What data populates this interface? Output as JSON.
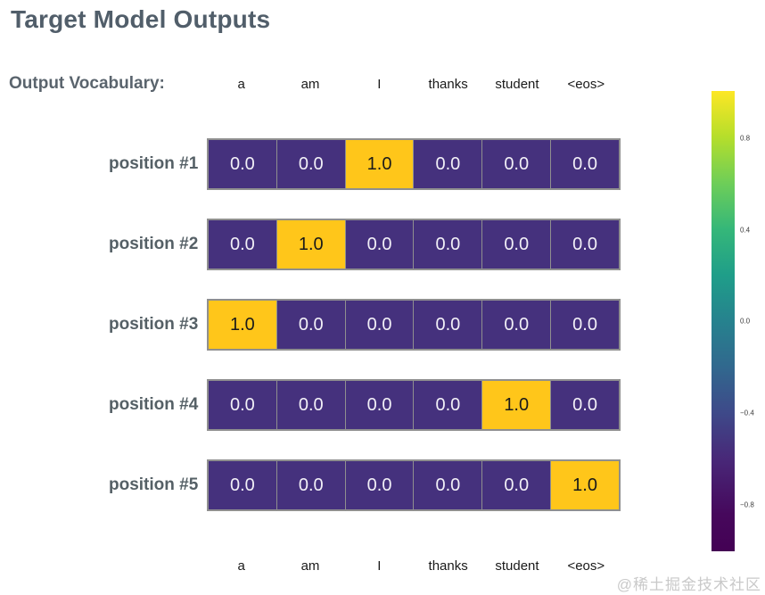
{
  "title": "Target Model Outputs",
  "vocab_label": "Output Vocabulary:",
  "watermark": "@稀土掘金技术社区",
  "chart_data": {
    "type": "heatmap",
    "title": "Target Model Outputs",
    "columns": [
      "a",
      "am",
      "I",
      "thanks",
      "student",
      "<eos>"
    ],
    "rows": [
      {
        "label": "position #1",
        "values": [
          0.0,
          0.0,
          1.0,
          0.0,
          0.0,
          0.0
        ]
      },
      {
        "label": "position #2",
        "values": [
          0.0,
          1.0,
          0.0,
          0.0,
          0.0,
          0.0
        ]
      },
      {
        "label": "position #3",
        "values": [
          1.0,
          0.0,
          0.0,
          0.0,
          0.0,
          0.0
        ]
      },
      {
        "label": "position #4",
        "values": [
          0.0,
          0.0,
          0.0,
          0.0,
          1.0,
          0.0
        ]
      },
      {
        "label": "position #5",
        "values": [
          0.0,
          0.0,
          0.0,
          0.0,
          0.0,
          1.0
        ]
      }
    ],
    "value_format_decimals": 1,
    "colors": {
      "low_cell": "#45317d",
      "high_cell": "#ffc61a"
    },
    "colorbar": {
      "colormap": "viridis",
      "range": [
        -1.0,
        1.0
      ],
      "ticks": [
        {
          "label": "0.8",
          "pos_pct": 10.3
        },
        {
          "label": "0.4",
          "pos_pct": 30.2
        },
        {
          "label": "0.0",
          "pos_pct": 50.0
        },
        {
          "label": "−0.4",
          "pos_pct": 69.9
        },
        {
          "label": "−0.8",
          "pos_pct": 89.9
        }
      ]
    },
    "legend_position": "right",
    "grid": false
  }
}
